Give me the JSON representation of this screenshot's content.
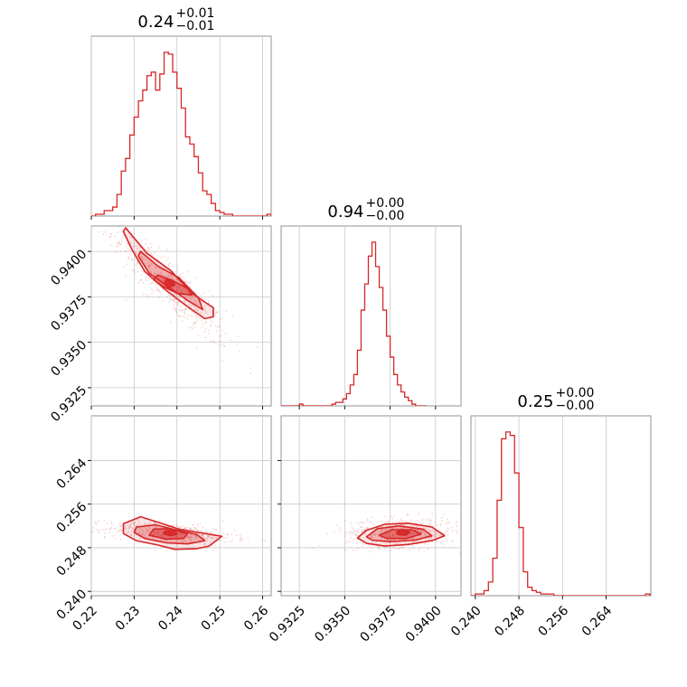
{
  "chart_data": {
    "type": "corner",
    "color": "#d62728",
    "grid": true,
    "parameters": [
      {
        "title": {
          "value": "0.24",
          "upper": "+0.01",
          "lower": "−0.01"
        },
        "range": [
          0.22,
          0.262
        ],
        "ticks": [
          0.22,
          0.23,
          0.24,
          0.25,
          0.26
        ],
        "tick_labels": [
          "0.22",
          "0.23",
          "0.24",
          "0.25",
          "0.26"
        ]
      },
      {
        "title": {
          "value": "0.94",
          "upper": "+0.00",
          "lower": "−0.00"
        },
        "range": [
          0.9315,
          0.9414
        ],
        "ticks": [
          0.9325,
          0.935,
          0.9375,
          0.94
        ],
        "tick_labels": [
          "0.9325",
          "0.9350",
          "0.9375",
          "0.9400"
        ]
      },
      {
        "title": {
          "value": "0.25",
          "upper": "+0.00",
          "lower": "−0.00"
        },
        "range": [
          0.2392,
          0.2722
        ],
        "ticks": [
          0.24,
          0.248,
          0.256,
          0.264
        ],
        "tick_labels": [
          "0.240",
          "0.248",
          "0.256",
          "0.264"
        ]
      }
    ],
    "histograms": [
      {
        "param": 0,
        "bin_start": 0.22,
        "bin_width": 0.001,
        "counts": [
          0,
          1,
          1,
          3,
          3,
          5,
          12,
          25,
          32,
          45,
          55,
          64,
          70,
          78,
          80,
          70,
          79,
          91,
          90,
          80,
          71,
          60,
          44,
          40,
          33,
          24,
          14,
          12,
          7,
          3,
          2,
          1,
          1,
          0,
          0,
          0,
          0,
          0,
          0,
          0,
          0,
          1
        ]
      },
      {
        "param": 1,
        "bin_start": 0.9315,
        "bin_width": 0.0002,
        "counts": [
          0,
          0,
          0,
          0,
          0,
          1,
          0,
          0,
          0,
          0,
          0,
          0,
          0,
          0,
          1,
          2,
          2,
          4,
          7,
          12,
          18,
          32,
          55,
          70,
          86,
          94,
          80,
          68,
          55,
          40,
          28,
          18,
          12,
          8,
          5,
          3,
          1,
          0,
          0,
          0
        ]
      },
      {
        "param": 2,
        "bin_start": 0.2392,
        "bin_width": 0.0008,
        "counts": [
          0,
          1,
          1,
          3,
          8,
          22,
          56,
          92,
          96,
          94,
          72,
          40,
          14,
          5,
          3,
          2,
          1,
          1,
          1,
          0,
          0,
          0,
          0,
          0,
          0,
          0,
          0,
          0,
          0,
          0,
          0,
          0,
          0,
          0,
          0,
          0,
          0,
          0,
          0,
          0,
          1
        ]
      }
    ],
    "pairs": [
      {
        "x_param": 0,
        "y_param": 1,
        "center": [
          0.2385,
          0.9381
        ],
        "contours": [
          [
            [
              0.228,
              0.9413
            ],
            [
              0.233,
              0.9399
            ],
            [
              0.2385,
              0.93895
            ],
            [
              0.2435,
              0.9377
            ],
            [
              0.2485,
              0.9369
            ],
            [
              0.2485,
              0.9364
            ],
            [
              0.2465,
              0.9363
            ],
            [
              0.2425,
              0.93695
            ],
            [
              0.2375,
              0.93785
            ],
            [
              0.2325,
              0.9389
            ],
            [
              0.2295,
              0.9401
            ],
            [
              0.2275,
              0.9411
            ]
          ],
          [
            [
              0.2315,
              0.94
            ],
            [
              0.2355,
              0.9392
            ],
            [
              0.2405,
              0.93855
            ],
            [
              0.245,
              0.93745
            ],
            [
              0.246,
              0.9368
            ],
            [
              0.2425,
              0.9373
            ],
            [
              0.238,
              0.93805
            ],
            [
              0.2335,
              0.9388
            ],
            [
              0.231,
              0.93975
            ]
          ],
          [
            [
              0.2355,
              0.9387
            ],
            [
              0.239,
              0.9384
            ],
            [
              0.2425,
              0.93795
            ],
            [
              0.2435,
              0.9376
            ],
            [
              0.24,
              0.9377
            ],
            [
              0.2365,
              0.9381
            ],
            [
              0.2345,
              0.93845
            ]
          ],
          [
            [
              0.2375,
              0.93845
            ],
            [
              0.239,
              0.9384
            ],
            [
              0.2395,
              0.93815
            ],
            [
              0.238,
              0.938
            ],
            [
              0.237,
              0.9382
            ]
          ]
        ]
      },
      {
        "x_param": 0,
        "y_param": 2,
        "center": [
          0.2385,
          0.2507
        ],
        "contours": [
          [
            [
              0.2275,
              0.2524
            ],
            [
              0.2315,
              0.2537
            ],
            [
              0.2355,
              0.2527
            ],
            [
              0.2405,
              0.2514
            ],
            [
              0.245,
              0.2508
            ],
            [
              0.2505,
              0.2501
            ],
            [
              0.2495,
              0.2495
            ],
            [
              0.2475,
              0.2483
            ],
            [
              0.2445,
              0.2478
            ],
            [
              0.2395,
              0.2477
            ],
            [
              0.2355,
              0.2485
            ],
            [
              0.2305,
              0.2493
            ],
            [
              0.2275,
              0.2506
            ]
          ],
          [
            [
              0.2305,
              0.2518
            ],
            [
              0.235,
              0.2522
            ],
            [
              0.2395,
              0.2513
            ],
            [
              0.2445,
              0.2505
            ],
            [
              0.2465,
              0.2493
            ],
            [
              0.2425,
              0.2487
            ],
            [
              0.2375,
              0.2489
            ],
            [
              0.2325,
              0.2497
            ],
            [
              0.23,
              0.2508
            ]
          ],
          [
            [
              0.2345,
              0.2514
            ],
            [
              0.2385,
              0.2515
            ],
            [
              0.2425,
              0.2506
            ],
            [
              0.2415,
              0.2497
            ],
            [
              0.2375,
              0.2496
            ],
            [
              0.2335,
              0.2503
            ]
          ],
          [
            [
              0.2375,
              0.2511
            ],
            [
              0.2395,
              0.2512
            ],
            [
              0.24,
              0.2505
            ],
            [
              0.2385,
              0.2502
            ],
            [
              0.2368,
              0.2506
            ]
          ]
        ]
      },
      {
        "x_param": 1,
        "y_param": 2,
        "center": [
          0.93815,
          0.2508
        ],
        "contours": [
          [
            [
              0.9357,
              0.2498
            ],
            [
              0.9362,
              0.2512
            ],
            [
              0.9372,
              0.2523
            ],
            [
              0.9385,
              0.2525
            ],
            [
              0.9398,
              0.2518
            ],
            [
              0.9405,
              0.2502
            ],
            [
              0.9398,
              0.2493
            ],
            [
              0.9385,
              0.2486
            ],
            [
              0.9372,
              0.2483
            ],
            [
              0.9362,
              0.2488
            ]
          ],
          [
            [
              0.9362,
              0.25
            ],
            [
              0.9368,
              0.2515
            ],
            [
              0.938,
              0.252
            ],
            [
              0.9393,
              0.2514
            ],
            [
              0.9398,
              0.2502
            ],
            [
              0.9389,
              0.2494
            ],
            [
              0.9375,
              0.2491
            ],
            [
              0.9365,
              0.2494
            ]
          ],
          [
            [
              0.9369,
              0.2503
            ],
            [
              0.9376,
              0.2513
            ],
            [
              0.9387,
              0.2513
            ],
            [
              0.9392,
              0.2505
            ],
            [
              0.9384,
              0.2497
            ],
            [
              0.9373,
              0.2497
            ]
          ],
          [
            [
              0.93785,
              0.2508
            ],
            [
              0.9381,
              0.2513
            ],
            [
              0.9386,
              0.2509
            ],
            [
              0.93835,
              0.2503
            ],
            [
              0.93795,
              0.2504
            ]
          ]
        ]
      }
    ],
    "title": "",
    "xlabel": "",
    "ylabel": ""
  }
}
